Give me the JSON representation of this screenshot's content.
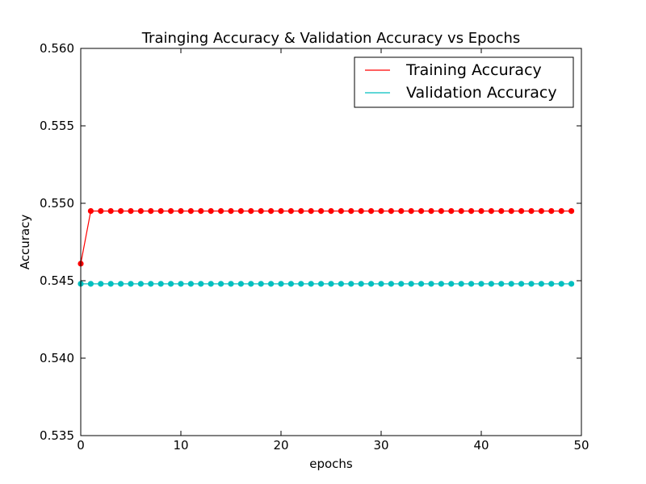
{
  "chart_data": {
    "type": "line",
    "title": "Trainging Accuracy & Validation Accuracy vs Epochs",
    "xlabel": "epochs",
    "ylabel": "Accuracy",
    "xlim": [
      0,
      50
    ],
    "ylim": [
      0.535,
      0.56
    ],
    "x_ticks": [
      0,
      10,
      20,
      30,
      40,
      50
    ],
    "y_ticks": [
      0.535,
      0.54,
      0.545,
      0.55,
      0.555,
      0.56
    ],
    "x_tick_labels": [
      "0",
      "10",
      "20",
      "30",
      "40",
      "50"
    ],
    "y_tick_labels": [
      "0.535",
      "0.540",
      "0.545",
      "0.550",
      "0.555",
      "0.560"
    ],
    "grid": false,
    "legend_position": "top-right",
    "x": [
      0,
      1,
      2,
      3,
      4,
      5,
      6,
      7,
      8,
      9,
      10,
      11,
      12,
      13,
      14,
      15,
      16,
      17,
      18,
      19,
      20,
      21,
      22,
      23,
      24,
      25,
      26,
      27,
      28,
      29,
      30,
      31,
      32,
      33,
      34,
      35,
      36,
      37,
      38,
      39,
      40,
      41,
      42,
      43,
      44,
      45,
      46,
      47,
      48,
      49
    ],
    "series": [
      {
        "name": "Training Accuracy",
        "color": "#ff0000",
        "marker": "circle",
        "values": [
          0.5461,
          0.5495,
          0.5495,
          0.5495,
          0.5495,
          0.5495,
          0.5495,
          0.5495,
          0.5495,
          0.5495,
          0.5495,
          0.5495,
          0.5495,
          0.5495,
          0.5495,
          0.5495,
          0.5495,
          0.5495,
          0.5495,
          0.5495,
          0.5495,
          0.5495,
          0.5495,
          0.5495,
          0.5495,
          0.5495,
          0.5495,
          0.5495,
          0.5495,
          0.5495,
          0.5495,
          0.5495,
          0.5495,
          0.5495,
          0.5495,
          0.5495,
          0.5495,
          0.5495,
          0.5495,
          0.5495,
          0.5495,
          0.5495,
          0.5495,
          0.5495,
          0.5495,
          0.5495,
          0.5495,
          0.5495,
          0.5495,
          0.5495
        ]
      },
      {
        "name": "Validation Accuracy",
        "color": "#00bfbf",
        "marker": "circle",
        "values": [
          0.5448,
          0.5448,
          0.5448,
          0.5448,
          0.5448,
          0.5448,
          0.5448,
          0.5448,
          0.5448,
          0.5448,
          0.5448,
          0.5448,
          0.5448,
          0.5448,
          0.5448,
          0.5448,
          0.5448,
          0.5448,
          0.5448,
          0.5448,
          0.5448,
          0.5448,
          0.5448,
          0.5448,
          0.5448,
          0.5448,
          0.5448,
          0.5448,
          0.5448,
          0.5448,
          0.5448,
          0.5448,
          0.5448,
          0.5448,
          0.5448,
          0.5448,
          0.5448,
          0.5448,
          0.5448,
          0.5448,
          0.5448,
          0.5448,
          0.5448,
          0.5448,
          0.5448,
          0.5448,
          0.5448,
          0.5448,
          0.5448,
          0.5448
        ]
      }
    ]
  }
}
